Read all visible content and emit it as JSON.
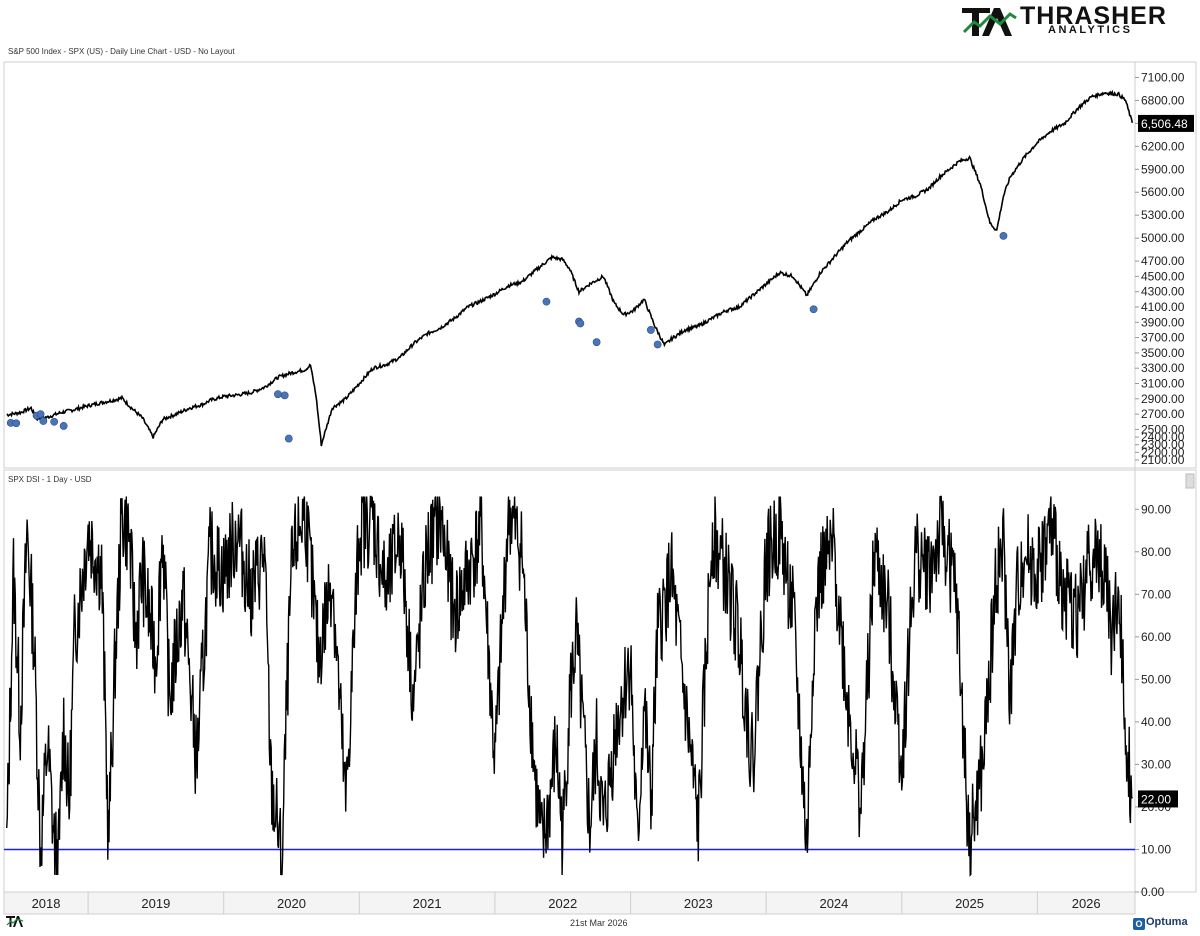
{
  "brand": {
    "name": "THRASHER",
    "sub": "ANALYTICS",
    "colors": {
      "green": "#1f8a3a",
      "black": "#111111"
    }
  },
  "header": {
    "caption": "S&P 500 Index - SPX (US) - Daily Line Chart - USD - No Layout"
  },
  "footer": {
    "date": "21st Mar 2026",
    "vendor": "Optuma"
  },
  "chart_data": [
    {
      "type": "line",
      "panel": "top",
      "title": "S&P 500 Index - SPX (US) - Daily Line Chart - USD - No Layout",
      "ylim": [
        2100,
        7250
      ],
      "yticks": [
        "7100.00",
        "6800.00",
        "6500.00",
        "6200.00",
        "5900.00",
        "5600.00",
        "5300.00",
        "5000.00",
        "4700.00",
        "4500.00",
        "4300.00",
        "4100.00",
        "3900.00",
        "3700.00",
        "3500.00",
        "3300.00",
        "3100.00",
        "2900.00",
        "2700.00",
        "2500.00",
        "2400.00",
        "2300.00",
        "2200.00",
        "2100.00"
      ],
      "last_value_label": "6,506.48",
      "line_color": "#000000",
      "series": [
        {
          "x": [
            2017.9,
            2018.0,
            2018.08,
            2018.12,
            2018.2,
            2018.3,
            2018.4,
            2018.5,
            2018.6,
            2018.68,
            2018.75,
            2018.82,
            2018.9,
            2018.98,
            2019.05,
            2019.15,
            2019.25,
            2019.35,
            2019.4,
            2019.5,
            2019.6,
            2019.7,
            2019.8,
            2019.9,
            2020.0,
            2020.1,
            2020.14,
            2020.18,
            2020.22,
            2020.3,
            2020.4,
            2020.5,
            2020.6,
            2020.7,
            2020.8,
            2020.9,
            2021.0,
            2021.1,
            2021.2,
            2021.3,
            2021.4,
            2021.5,
            2021.6,
            2021.7,
            2021.78,
            2021.85,
            2021.92,
            2022.0,
            2022.05,
            2022.12,
            2022.2,
            2022.3,
            2022.38,
            2022.45,
            2022.52,
            2022.6,
            2022.68,
            2022.75,
            2022.8,
            2022.9,
            2023.0,
            2023.1,
            2023.2,
            2023.3,
            2023.4,
            2023.5,
            2023.6,
            2023.7,
            2023.8,
            2023.9,
            2024.0,
            2024.1,
            2024.2,
            2024.3,
            2024.4,
            2024.5,
            2024.6,
            2024.7,
            2024.78,
            2024.85,
            2024.92,
            2025.0,
            2025.08,
            2025.15,
            2025.2,
            2025.25,
            2025.3,
            2025.4,
            2025.5,
            2025.6,
            2025.7,
            2025.8,
            2025.9,
            2026.0,
            2026.1,
            2026.15,
            2026.2
          ],
          "y": [
            2690,
            2720,
            2780,
            2640,
            2660,
            2720,
            2760,
            2810,
            2850,
            2880,
            2910,
            2780,
            2650,
            2400,
            2630,
            2700,
            2780,
            2830,
            2880,
            2930,
            2950,
            2980,
            3050,
            3180,
            3240,
            3280,
            3340,
            2950,
            2300,
            2780,
            2900,
            3100,
            3300,
            3350,
            3440,
            3620,
            3750,
            3830,
            3950,
            4100,
            4180,
            4270,
            4380,
            4430,
            4550,
            4650,
            4750,
            4720,
            4600,
            4300,
            4400,
            4500,
            4150,
            4000,
            4050,
            4200,
            3850,
            3600,
            3680,
            3800,
            3850,
            3950,
            4050,
            4100,
            4250,
            4400,
            4550,
            4500,
            4250,
            4550,
            4750,
            4950,
            5100,
            5250,
            5350,
            5500,
            5550,
            5650,
            5800,
            5900,
            6000,
            6050,
            5700,
            5200,
            5100,
            5550,
            5800,
            6050,
            6250,
            6400,
            6500,
            6700,
            6850,
            6900,
            6880,
            6800,
            6506
          ]
        }
      ],
      "markers": {
        "color": "#4a74b8",
        "points": [
          {
            "x": 2017.93,
            "y": 2585
          },
          {
            "x": 2017.97,
            "y": 2580
          },
          {
            "x": 2018.12,
            "y": 2680
          },
          {
            "x": 2018.15,
            "y": 2700
          },
          {
            "x": 2018.17,
            "y": 2610
          },
          {
            "x": 2018.25,
            "y": 2600
          },
          {
            "x": 2018.32,
            "y": 2545
          },
          {
            "x": 2019.9,
            "y": 2960
          },
          {
            "x": 2019.95,
            "y": 2945
          },
          {
            "x": 2019.98,
            "y": 2380
          },
          {
            "x": 2021.88,
            "y": 4170
          },
          {
            "x": 2022.12,
            "y": 3910
          },
          {
            "x": 2022.13,
            "y": 3885
          },
          {
            "x": 2022.25,
            "y": 3640
          },
          {
            "x": 2022.65,
            "y": 3800
          },
          {
            "x": 2022.7,
            "y": 3610
          },
          {
            "x": 2023.85,
            "y": 4070
          },
          {
            "x": 2025.25,
            "y": 5030
          }
        ]
      }
    },
    {
      "type": "line",
      "panel": "bottom",
      "title": "SPX DSI - 1 Day - USD",
      "ylim": [
        0,
        95
      ],
      "yticks": [
        "90.00",
        "80.00",
        "70.00",
        "60.00",
        "50.00",
        "40.00",
        "30.00",
        "20.00",
        "10.00",
        "0.00"
      ],
      "last_value_label": "22.00",
      "line_color": "#000000",
      "reference_line": {
        "y": 10,
        "color": "#1a1aff"
      },
      "series": [
        {
          "x": [
            2017.9,
            2017.95,
            2018.0,
            2018.05,
            2018.1,
            2018.15,
            2018.2,
            2018.25,
            2018.28,
            2018.32,
            2018.36,
            2018.4,
            2018.5,
            2018.6,
            2018.65,
            2018.7,
            2018.75,
            2018.8,
            2018.85,
            2018.9,
            2019.0,
            2019.05,
            2019.1,
            2019.2,
            2019.3,
            2019.4,
            2019.5,
            2019.6,
            2019.7,
            2019.8,
            2019.85,
            2019.9,
            2019.93,
            2019.96,
            2020.0,
            2020.05,
            2020.1,
            2020.2,
            2020.3,
            2020.4,
            2020.5,
            2020.6,
            2020.7,
            2020.8,
            2020.9,
            2021.0,
            2021.1,
            2021.2,
            2021.3,
            2021.4,
            2021.5,
            2021.6,
            2021.7,
            2021.75,
            2021.8,
            2021.85,
            2021.9,
            2021.95,
            2022.0,
            2022.05,
            2022.1,
            2022.2,
            2022.25,
            2022.3,
            2022.4,
            2022.5,
            2022.55,
            2022.6,
            2022.65,
            2022.7,
            2022.8,
            2022.9,
            2023.0,
            2023.1,
            2023.2,
            2023.3,
            2023.4,
            2023.5,
            2023.6,
            2023.7,
            2023.8,
            2023.85,
            2023.9,
            2024.0,
            2024.1,
            2024.2,
            2024.3,
            2024.4,
            2024.5,
            2024.6,
            2024.7,
            2024.8,
            2024.9,
            2025.0,
            2025.1,
            2025.2,
            2025.25,
            2025.3,
            2025.35,
            2025.4,
            2025.5,
            2025.6,
            2025.7,
            2025.8,
            2025.9,
            2026.0,
            2026.05,
            2026.1,
            2026.15,
            2026.2
          ],
          "y": [
            10,
            75,
            40,
            85,
            60,
            10,
            35,
            12,
            6,
            40,
            20,
            60,
            85,
            75,
            12,
            55,
            88,
            85,
            60,
            75,
            55,
            85,
            45,
            70,
            30,
            80,
            75,
            85,
            70,
            80,
            25,
            15,
            5,
            40,
            75,
            85,
            90,
            55,
            75,
            20,
            85,
            88,
            70,
            85,
            45,
            80,
            88,
            65,
            75,
            85,
            30,
            90,
            80,
            50,
            25,
            10,
            20,
            35,
            12,
            45,
            60,
            15,
            35,
            15,
            40,
            55,
            10,
            45,
            20,
            60,
            75,
            45,
            15,
            85,
            75,
            60,
            30,
            78,
            85,
            65,
            10,
            60,
            75,
            80,
            45,
            20,
            80,
            65,
            30,
            80,
            75,
            85,
            70,
            10,
            30,
            75,
            80,
            45,
            70,
            80,
            75,
            85,
            70,
            65,
            80,
            75,
            60,
            70,
            40,
            22
          ]
        }
      ]
    }
  ],
  "x_axis": {
    "years": [
      "2018",
      "2019",
      "2020",
      "2021",
      "2022",
      "2023",
      "2024",
      "2025",
      "2026"
    ]
  }
}
